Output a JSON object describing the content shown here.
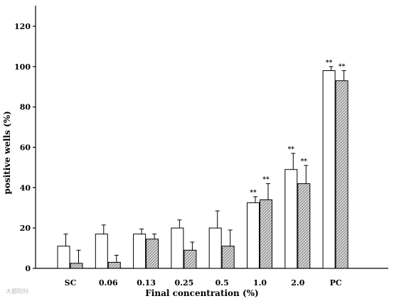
{
  "chart_data": {
    "type": "bar",
    "xlabel": "Final concentration (%)",
    "ylabel": "positive wells (%)",
    "ylim": [
      0,
      120
    ],
    "yticks": [
      "0",
      "20",
      "40",
      "60",
      "80",
      "100",
      "120"
    ],
    "categories": [
      "SC",
      "0.06",
      "0.13",
      "0.25",
      "0.5",
      "1.0",
      "2.0",
      "PC"
    ],
    "series": [
      {
        "fill": "white",
        "values": [
          11,
          17,
          17,
          20,
          20,
          32.5,
          49,
          98
        ],
        "errors": [
          6,
          4.5,
          2.5,
          4,
          8.5,
          3,
          8,
          2
        ],
        "annotations": [
          "",
          "",
          "",
          "",
          "",
          "**",
          "**",
          "**"
        ]
      },
      {
        "fill": "hatched",
        "values": [
          2.5,
          3,
          14.5,
          9,
          11,
          34,
          42,
          93
        ],
        "errors": [
          6.5,
          3.5,
          2.5,
          4,
          8,
          8,
          9,
          5
        ],
        "annotations": [
          "",
          "",
          "",
          "",
          "",
          "**",
          "**",
          "**"
        ]
      }
    ],
    "grid": false,
    "legend": "none"
  },
  "colors": {
    "axis": "#000000",
    "bar_outline": "#000000",
    "hatch": "#777777",
    "hatch_bg": "#d9d9d9"
  },
  "watermark": "大都院科"
}
